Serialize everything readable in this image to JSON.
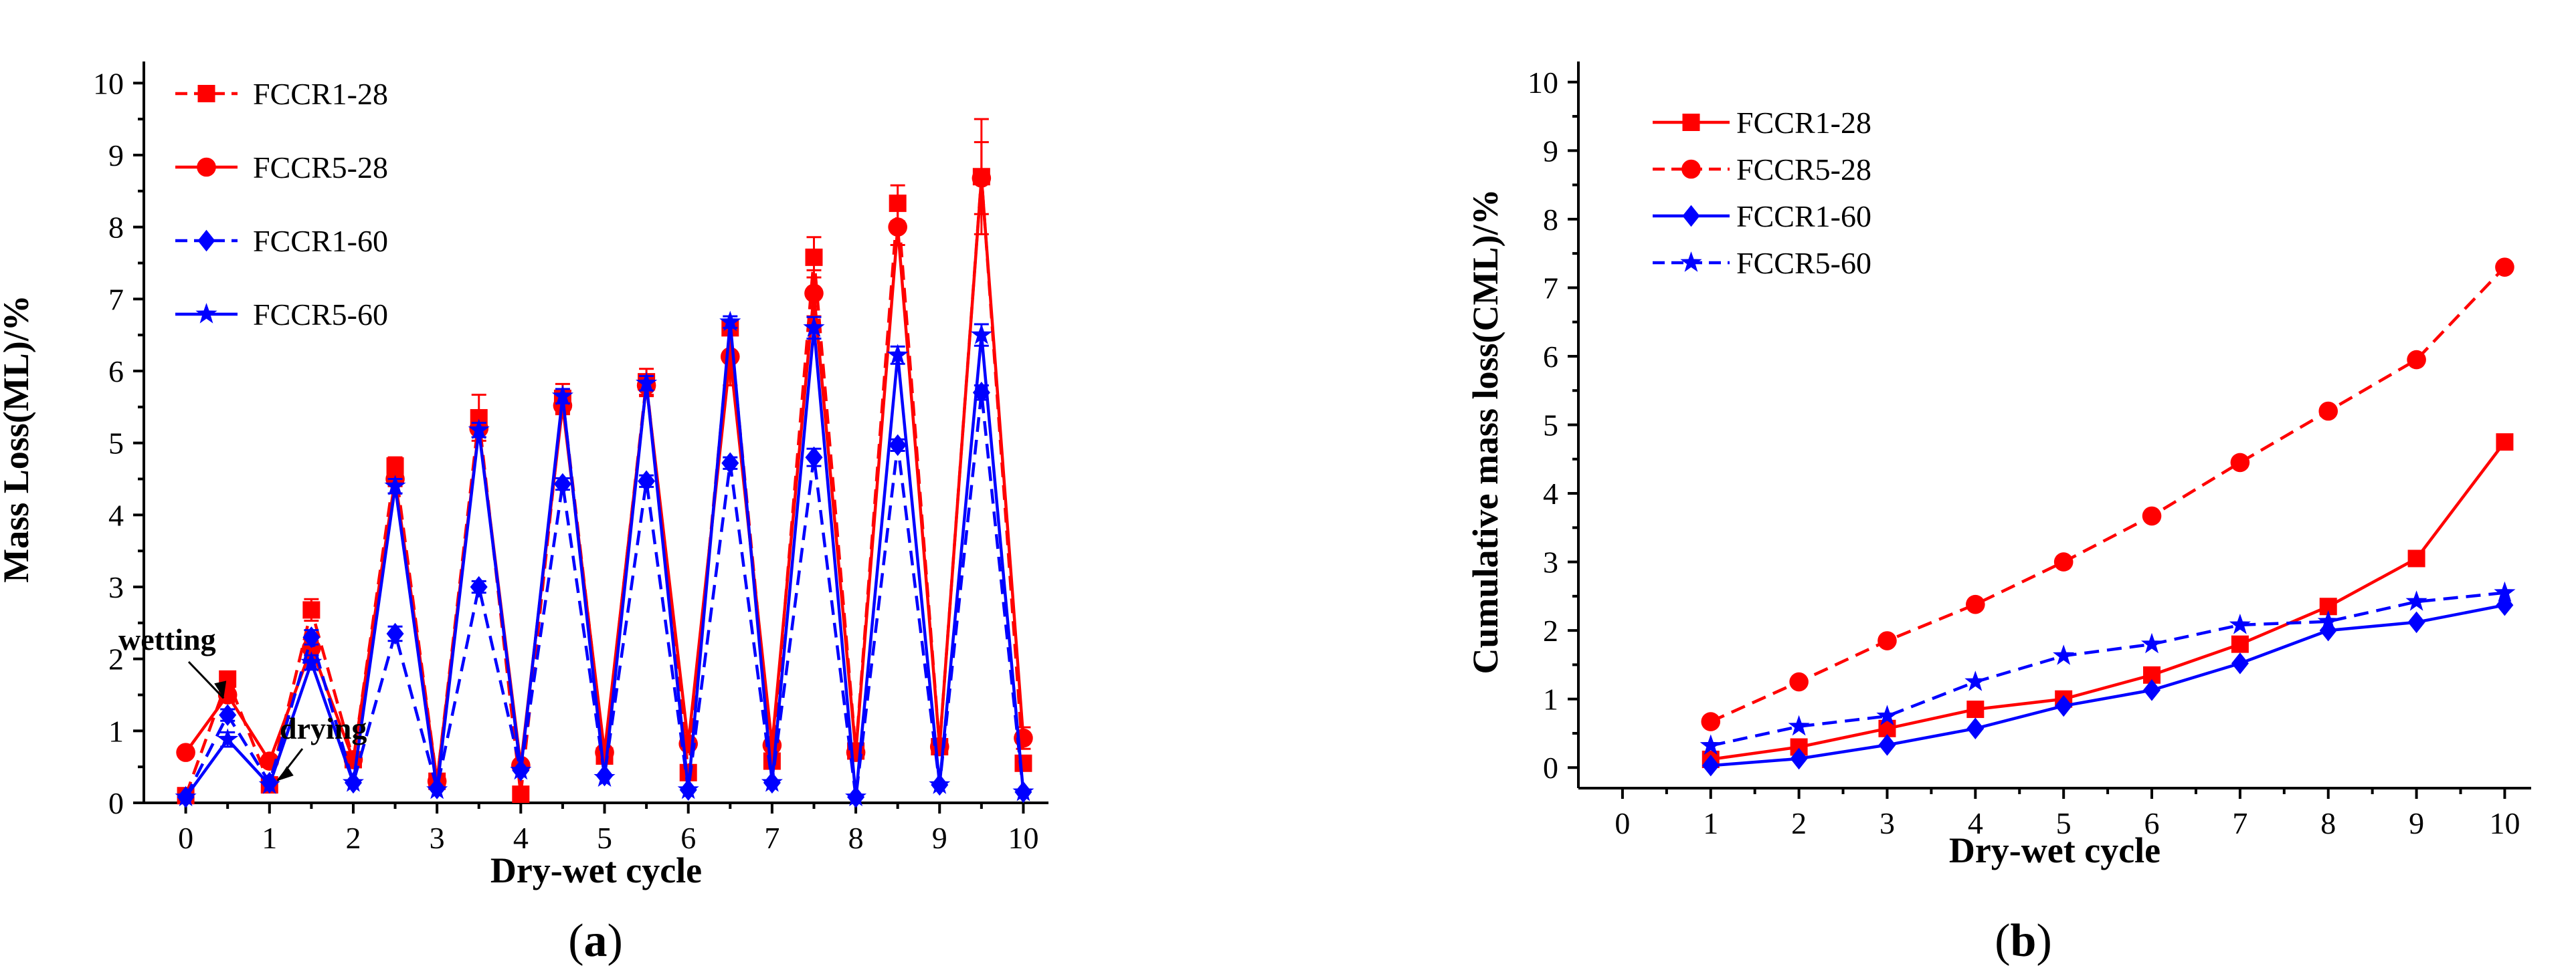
{
  "chart_data": [
    {
      "panel": "a",
      "caption": [
        "(",
        "a",
        ")"
      ],
      "type": "line",
      "title": "",
      "xlabel": "Dry-wet cycle",
      "ylabel": "Mass Loss(ML)/%",
      "xlim": [
        -0.5,
        10.3
      ],
      "ylim": [
        0,
        10.3
      ],
      "x_ticks": [
        0,
        1,
        2,
        3,
        4,
        5,
        6,
        7,
        8,
        9,
        10
      ],
      "y_ticks": [
        0,
        1,
        2,
        3,
        4,
        5,
        6,
        7,
        8,
        9,
        10
      ],
      "grid": false,
      "legend_position": "top-left",
      "x": [
        0,
        0.5,
        1,
        1.5,
        2,
        2.5,
        3,
        3.5,
        4,
        4.5,
        5,
        5.5,
        6,
        6.5,
        7,
        7.5,
        8,
        8.5,
        9,
        9.5,
        10
      ],
      "series": [
        {
          "name": "FCCR1-28",
          "color": "#ff0000",
          "dash": true,
          "marker": "square",
          "values": [
            0.1,
            1.72,
            0.25,
            2.68,
            0.6,
            4.68,
            0.3,
            5.35,
            0.12,
            5.62,
            0.65,
            5.85,
            0.42,
            6.6,
            0.58,
            7.58,
            0.72,
            8.33,
            0.78,
            8.7,
            0.55
          ],
          "errors": [
            0,
            0.1,
            0,
            0.15,
            0,
            0.12,
            0,
            0.32,
            0,
            0.2,
            0,
            0.18,
            0,
            0.1,
            0,
            0.28,
            0,
            0.25,
            0,
            0.8,
            0.1
          ]
        },
        {
          "name": "FCCR5-28",
          "color": "#ff0000",
          "dash": false,
          "marker": "circle",
          "values": [
            0.7,
            1.5,
            0.58,
            2.15,
            0.6,
            4.5,
            0.3,
            5.2,
            0.52,
            5.52,
            0.7,
            5.8,
            0.82,
            6.2,
            0.8,
            7.08,
            0.7,
            8.0,
            0.78,
            8.68,
            0.9
          ],
          "errors": [
            0,
            0.1,
            0,
            0.1,
            0,
            0.1,
            0,
            0.12,
            0,
            0.12,
            0,
            0.15,
            0,
            0.4,
            0,
            0.32,
            0,
            0.25,
            0,
            0.5,
            0.15
          ]
        },
        {
          "name": "FCCR1-60",
          "color": "#0000ff",
          "dash": true,
          "marker": "diamond",
          "values": [
            0.08,
            1.22,
            0.28,
            2.3,
            0.28,
            2.35,
            0.2,
            3.0,
            0.45,
            4.43,
            0.38,
            4.47,
            0.18,
            4.72,
            0.28,
            4.8,
            0.08,
            4.97,
            0.25,
            5.7,
            0.15
          ],
          "errors": [
            0,
            0.08,
            0,
            0.1,
            0,
            0.1,
            0,
            0.08,
            0,
            0.08,
            0,
            0.08,
            0,
            0.08,
            0,
            0.12,
            0,
            0.08,
            0,
            0.1,
            0
          ]
        },
        {
          "name": "FCCR5-60",
          "color": "#0000ff",
          "dash": false,
          "marker": "star",
          "values": [
            0.08,
            0.88,
            0.25,
            1.95,
            0.28,
            4.4,
            0.18,
            5.18,
            0.45,
            5.65,
            0.35,
            5.83,
            0.18,
            6.68,
            0.28,
            6.6,
            0.08,
            6.22,
            0.25,
            6.5,
            0.15
          ],
          "errors": [
            0,
            0.1,
            0,
            0.1,
            0,
            0.1,
            0,
            0.1,
            0,
            0.1,
            0,
            0.1,
            0,
            0.08,
            0,
            0.15,
            0,
            0.12,
            0,
            0.15,
            0
          ]
        }
      ],
      "annotations": [
        {
          "text": "wetting",
          "target_x": 0.5,
          "target_y": 1.25
        },
        {
          "text": "drying",
          "target_x": 1,
          "target_y": 0.25
        }
      ]
    },
    {
      "panel": "b",
      "caption": [
        "(",
        "b",
        ")"
      ],
      "type": "line",
      "title": "",
      "xlabel": "Dry-wet cycle",
      "ylabel": "Cumulative mass loss(CML)/%",
      "xlim": [
        -0.5,
        10.3
      ],
      "ylim": [
        -0.3,
        10.3
      ],
      "x_ticks": [
        0,
        1,
        2,
        3,
        4,
        5,
        6,
        7,
        8,
        9,
        10
      ],
      "y_ticks": [
        0,
        1,
        2,
        3,
        4,
        5,
        6,
        7,
        8,
        9,
        10
      ],
      "grid": false,
      "legend_position": "top-left",
      "x": [
        1,
        2,
        3,
        4,
        5,
        6,
        7,
        8,
        9,
        10
      ],
      "series": [
        {
          "name": "FCCR1-28",
          "color": "#ff0000",
          "dash": false,
          "marker": "square",
          "values": [
            0.12,
            0.3,
            0.57,
            0.85,
            1.0,
            1.35,
            1.8,
            2.35,
            3.05,
            4.75
          ]
        },
        {
          "name": "FCCR5-28",
          "color": "#ff0000",
          "dash": true,
          "marker": "circle",
          "values": [
            0.67,
            1.25,
            1.85,
            2.38,
            3.0,
            3.67,
            4.45,
            5.2,
            5.95,
            7.3
          ]
        },
        {
          "name": "FCCR1-60",
          "color": "#0000ff",
          "dash": false,
          "marker": "diamond",
          "values": [
            0.03,
            0.13,
            0.33,
            0.57,
            0.9,
            1.13,
            1.52,
            2.0,
            2.12,
            2.37
          ]
        },
        {
          "name": "FCCR5-60",
          "color": "#0000ff",
          "dash": true,
          "marker": "star",
          "values": [
            0.32,
            0.6,
            0.75,
            1.25,
            1.63,
            1.8,
            2.08,
            2.13,
            2.42,
            2.55
          ]
        }
      ],
      "annotations": []
    }
  ]
}
